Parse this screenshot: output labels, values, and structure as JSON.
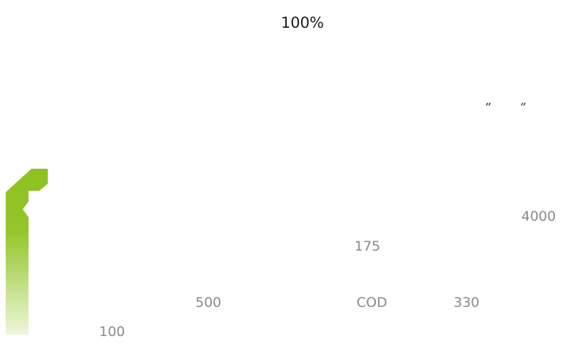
{
  "headline": "100%",
  "quote": {
    "open": "”",
    "close": "”"
  },
  "numbers": {
    "n4000": "4000",
    "n175": "175",
    "n500": "500",
    "cod": "COD",
    "n330": "330",
    "n100": "100"
  },
  "colors": {
    "accent_green": "#8dc21f",
    "text_dark": "#1a1a1a",
    "text_gray": "#8a8a8a"
  }
}
